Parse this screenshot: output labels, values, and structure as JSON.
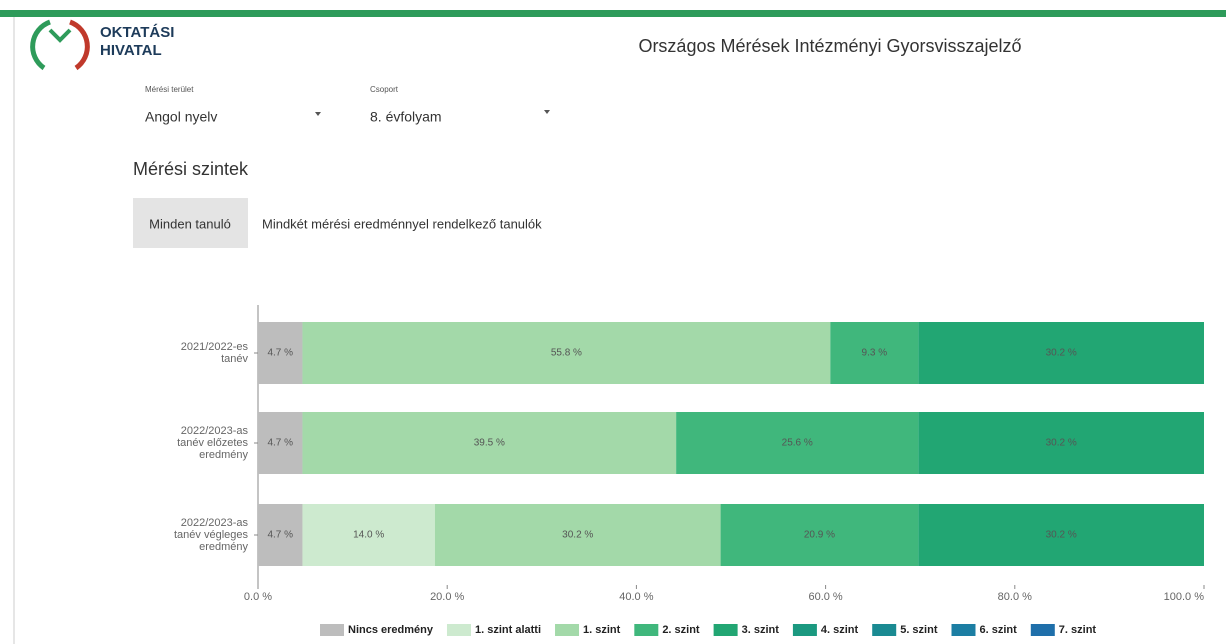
{
  "header": {
    "logo": [
      "OKTATÁSI",
      "HIVATAL"
    ],
    "title": "Országos Mérések Intézményi Gyorsvisszajelző"
  },
  "filters": [
    {
      "label": "Mérési terület",
      "value": "Angol nyelv"
    },
    {
      "label": "Csoport",
      "value": "8. évfolyam"
    }
  ],
  "section_title": "Mérési szintek",
  "button": "Minden tanuló",
  "button_description": "Mindkét mérési eredménnyel rendelkező tanulók",
  "chart_data": {
    "type": "stacked-bar-horizontal",
    "categories": [
      [
        "2021/2022-es",
        "tanév"
      ],
      [
        "2022/2023-as",
        "tanév előzetes",
        "eredmény"
      ],
      [
        "2022/2023-as",
        "tanév végleges",
        "eredmény"
      ]
    ],
    "series": [
      {
        "name": "Nincs eredmény",
        "color": "#bdbdbd",
        "values": [
          4.7,
          4.7,
          4.7
        ],
        "value_labels": [
          "4.7 %",
          "4.7 %",
          "4.7 %"
        ]
      },
      {
        "name": "1. szint alatti",
        "color": "#cdeacf",
        "values": [
          null,
          null,
          14.0
        ],
        "value_labels": [
          null,
          null,
          "14.0 %"
        ]
      },
      {
        "name": "1. szint",
        "color": "#a3d9a9",
        "values": [
          55.8,
          39.5,
          30.2
        ],
        "value_labels": [
          "55.8 %",
          "39.5 %",
          "30.2 %"
        ]
      },
      {
        "name": "2. szint",
        "color": "#40b77c",
        "values": [
          9.3,
          25.6,
          20.9
        ],
        "value_labels": [
          "9.3 %",
          "25.6 %",
          "20.9 %"
        ]
      },
      {
        "name": "3. szint",
        "color": "#22a673",
        "values": [
          30.2,
          30.2,
          30.2
        ],
        "value_labels": [
          "30.2 %",
          "30.2 %",
          "30.2 %"
        ]
      },
      {
        "name": "4. szint",
        "color": "#1b9980",
        "values": [
          null,
          null,
          null
        ]
      },
      {
        "name": "5. szint",
        "color": "#1a8a92",
        "values": [
          null,
          null,
          null
        ]
      },
      {
        "name": "6. szint",
        "color": "#1c7ea3",
        "values": [
          null,
          null,
          null
        ]
      },
      {
        "name": "7. szint",
        "color": "#1f6faa",
        "values": [
          null,
          null,
          null
        ]
      }
    ],
    "xlim": [
      0,
      100
    ],
    "xticks": [
      {
        "value": 0,
        "label": "0.0 %"
      },
      {
        "value": 20,
        "label": "20.0 %"
      },
      {
        "value": 40,
        "label": "40.0 %"
      },
      {
        "value": 60,
        "label": "60.0 %"
      },
      {
        "value": 80,
        "label": "80.0 %"
      },
      {
        "value": 100,
        "label": "100.0 %"
      }
    ]
  }
}
